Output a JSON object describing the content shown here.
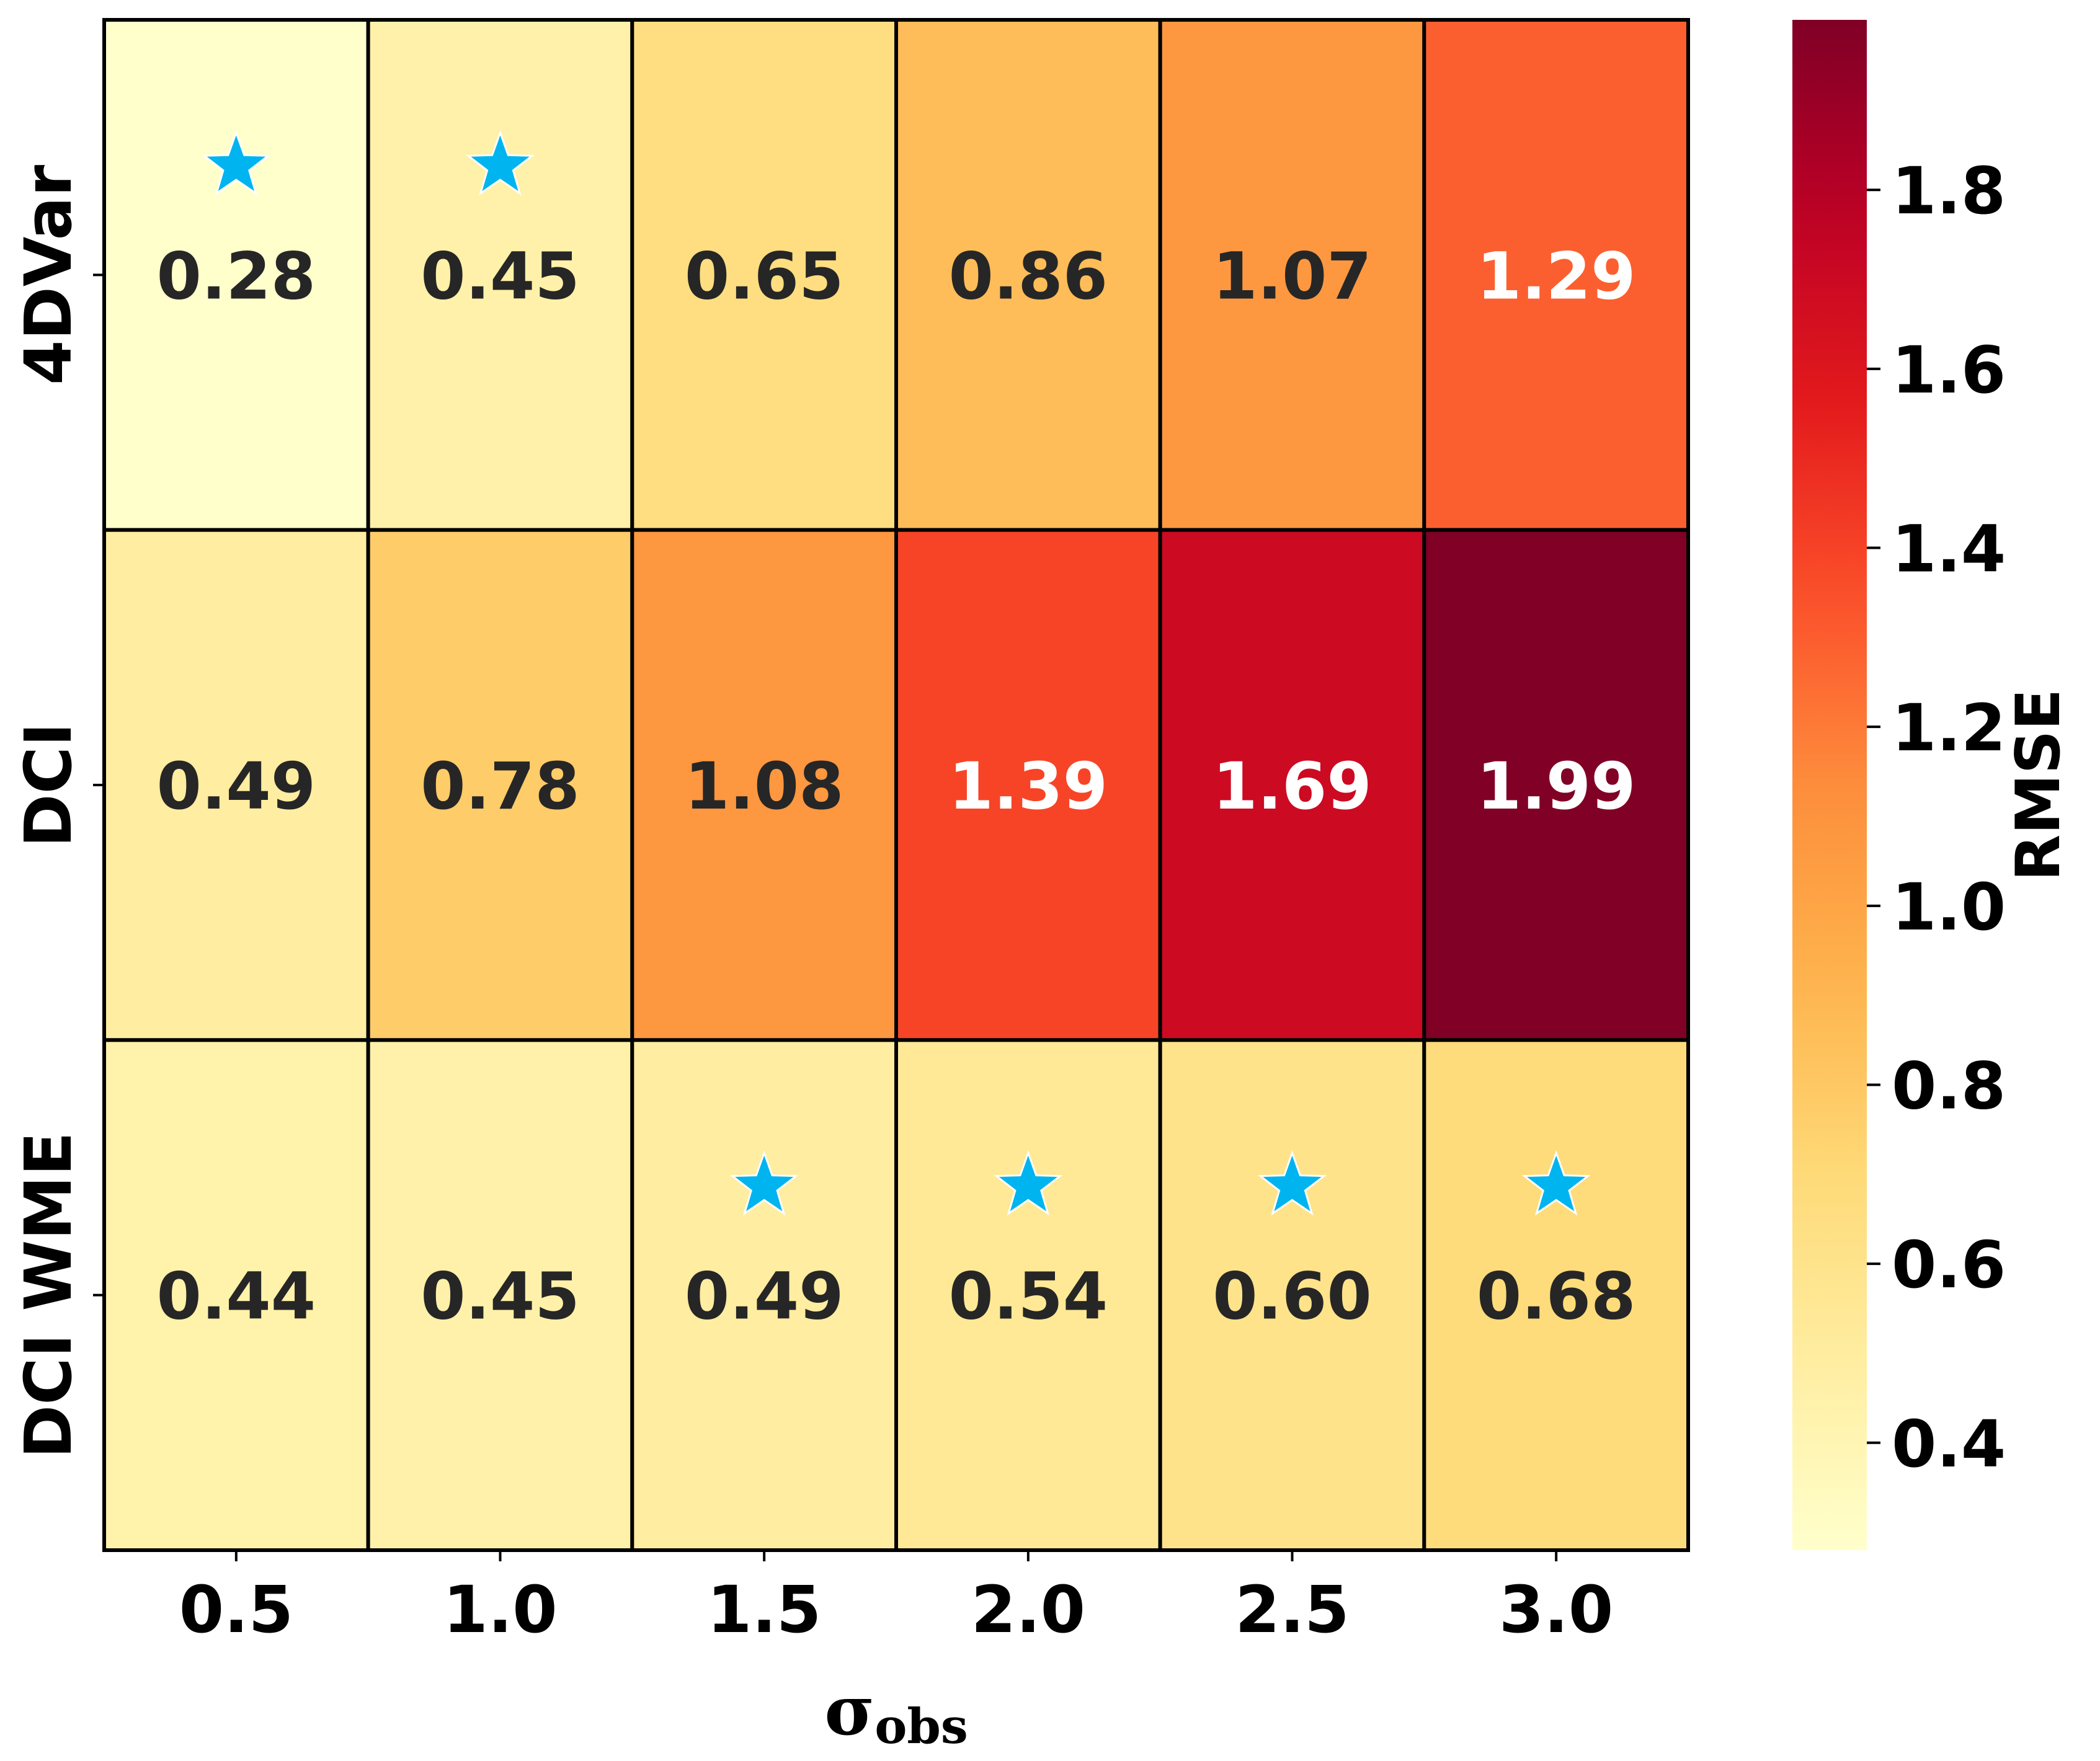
{
  "chart_data": {
    "type": "heatmap",
    "title": "",
    "xlabel_symbol": "σ",
    "xlabel_subscript": "obs",
    "ylabel": "",
    "x_categories": [
      "0.5",
      "1.0",
      "1.5",
      "2.0",
      "2.5",
      "3.0"
    ],
    "y_categories": [
      "4DVar",
      "DCI",
      "DCI WME"
    ],
    "values": [
      [
        0.28,
        0.45,
        0.65,
        0.86,
        1.07,
        1.29
      ],
      [
        0.49,
        0.78,
        1.08,
        1.39,
        1.69,
        1.99
      ],
      [
        0.44,
        0.45,
        0.49,
        0.54,
        0.6,
        0.68
      ]
    ],
    "cell_labels": [
      [
        "0.28",
        "0.45",
        "0.65",
        "0.86",
        "1.07",
        "1.29"
      ],
      [
        "0.49",
        "0.78",
        "1.08",
        "1.39",
        "1.69",
        "1.99"
      ],
      [
        "0.44",
        "0.45",
        "0.49",
        "0.54",
        "0.60",
        "0.68"
      ]
    ],
    "best_markers": [
      {
        "row": 0,
        "col": 0
      },
      {
        "row": 0,
        "col": 1
      },
      {
        "row": 2,
        "col": 2
      },
      {
        "row": 2,
        "col": 3
      },
      {
        "row": 2,
        "col": 4
      },
      {
        "row": 2,
        "col": 5
      }
    ],
    "colormap": "YlOrRd",
    "colorbar": {
      "label": "RMSE",
      "vmin": 0.28,
      "vmax": 1.99,
      "ticks": [
        0.4,
        0.6,
        0.8,
        1.0,
        1.2,
        1.4,
        1.6,
        1.8
      ],
      "tick_labels": [
        "0.4",
        "0.6",
        "0.8",
        "1.0",
        "1.2",
        "1.4",
        "1.6",
        "1.8"
      ]
    },
    "marker_color": "#00b4f0",
    "dark_text_color": "#262626",
    "light_text_color": "#ffffff"
  }
}
